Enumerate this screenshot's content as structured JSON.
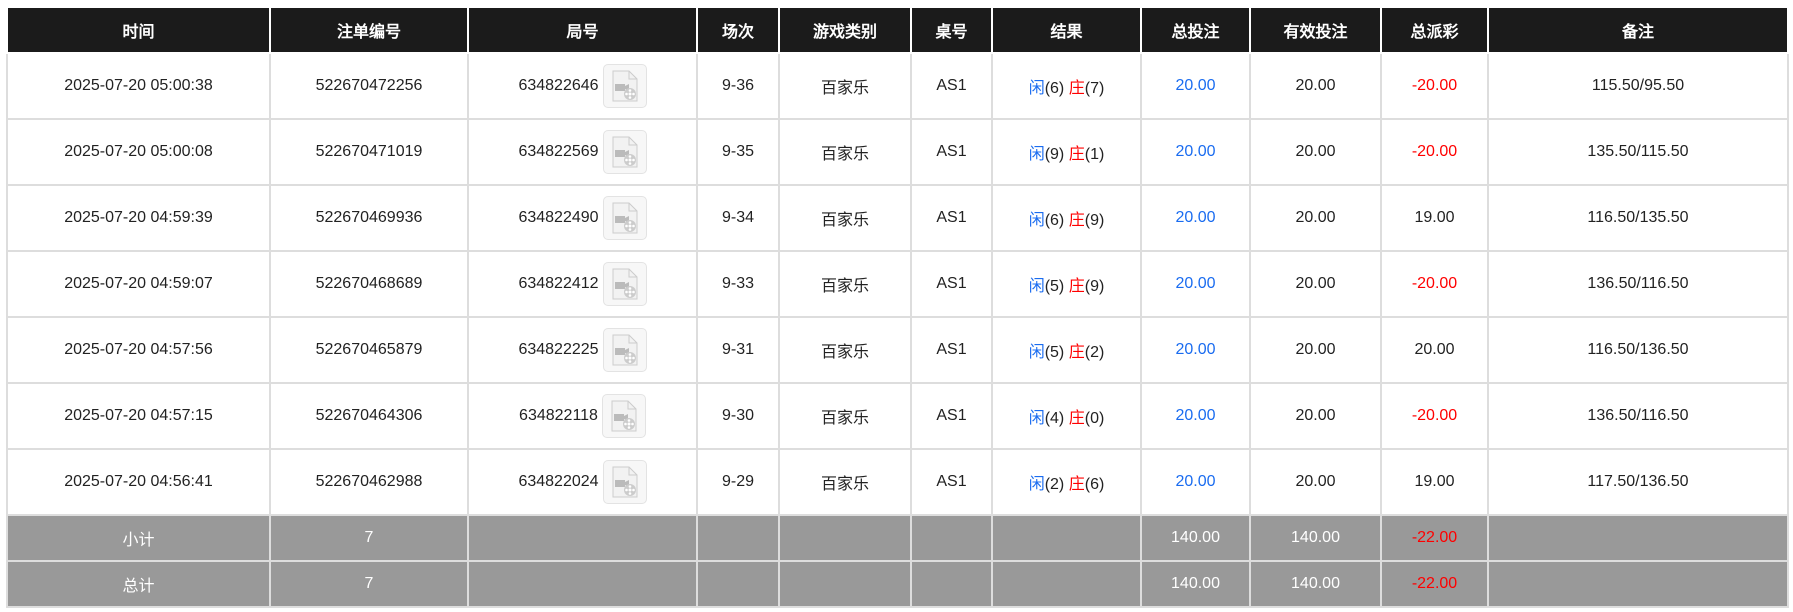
{
  "headers": [
    "时间",
    "注单编号",
    "局号",
    "场次",
    "游戏类别",
    "桌号",
    "结果",
    "总投注",
    "有效投注",
    "总派彩",
    "备注"
  ],
  "rows": [
    {
      "time": "2025-07-20 05:00:38",
      "bet_id": "522670472256",
      "round": "634822646",
      "shoe": "9-36",
      "game": "百家乐",
      "table": "AS1",
      "player_label": "闲",
      "player": "(6)",
      "banker_label": "庄",
      "banker": "(7)",
      "bet": "20.00",
      "valid": "20.00",
      "payout": "-20.00",
      "payout_negative": true,
      "note": "115.50/95.50"
    },
    {
      "time": "2025-07-20 05:00:08",
      "bet_id": "522670471019",
      "round": "634822569",
      "shoe": "9-35",
      "game": "百家乐",
      "table": "AS1",
      "player_label": "闲",
      "player": "(9)",
      "banker_label": "庄",
      "banker": "(1)",
      "bet": "20.00",
      "valid": "20.00",
      "payout": "-20.00",
      "payout_negative": true,
      "note": "135.50/115.50"
    },
    {
      "time": "2025-07-20 04:59:39",
      "bet_id": "522670469936",
      "round": "634822490",
      "shoe": "9-34",
      "game": "百家乐",
      "table": "AS1",
      "player_label": "闲",
      "player": "(6)",
      "banker_label": "庄",
      "banker": "(9)",
      "bet": "20.00",
      "valid": "20.00",
      "payout": "19.00",
      "payout_negative": false,
      "note": "116.50/135.50"
    },
    {
      "time": "2025-07-20 04:59:07",
      "bet_id": "522670468689",
      "round": "634822412",
      "shoe": "9-33",
      "game": "百家乐",
      "table": "AS1",
      "player_label": "闲",
      "player": "(5)",
      "banker_label": "庄",
      "banker": "(9)",
      "bet": "20.00",
      "valid": "20.00",
      "payout": "-20.00",
      "payout_negative": true,
      "note": "136.50/116.50"
    },
    {
      "time": "2025-07-20 04:57:56",
      "bet_id": "522670465879",
      "round": "634822225",
      "shoe": "9-31",
      "game": "百家乐",
      "table": "AS1",
      "player_label": "闲",
      "player": "(5)",
      "banker_label": "庄",
      "banker": "(2)",
      "bet": "20.00",
      "valid": "20.00",
      "payout": "20.00",
      "payout_negative": false,
      "note": "116.50/136.50"
    },
    {
      "time": "2025-07-20 04:57:15",
      "bet_id": "522670464306",
      "round": "634822118",
      "shoe": "9-30",
      "game": "百家乐",
      "table": "AS1",
      "player_label": "闲",
      "player": "(4)",
      "banker_label": "庄",
      "banker": "(0)",
      "bet": "20.00",
      "valid": "20.00",
      "payout": "-20.00",
      "payout_negative": true,
      "note": "136.50/116.50"
    },
    {
      "time": "2025-07-20 04:56:41",
      "bet_id": "522670462988",
      "round": "634822024",
      "shoe": "9-29",
      "game": "百家乐",
      "table": "AS1",
      "player_label": "闲",
      "player": "(2)",
      "banker_label": "庄",
      "banker": "(6)",
      "bet": "20.00",
      "valid": "20.00",
      "payout": "19.00",
      "payout_negative": false,
      "note": "117.50/136.50"
    }
  ],
  "summary": [
    {
      "label": "小计",
      "count": "7",
      "bet": "140.00",
      "valid": "140.00",
      "payout": "-22.00"
    },
    {
      "label": "总计",
      "count": "7",
      "bet": "140.00",
      "valid": "140.00",
      "payout": "-22.00"
    }
  ],
  "colors": {
    "header_bg": "#1b1b1b",
    "player": "#1a6cf0",
    "banker": "#ff0000",
    "summary_bg": "#999999"
  }
}
